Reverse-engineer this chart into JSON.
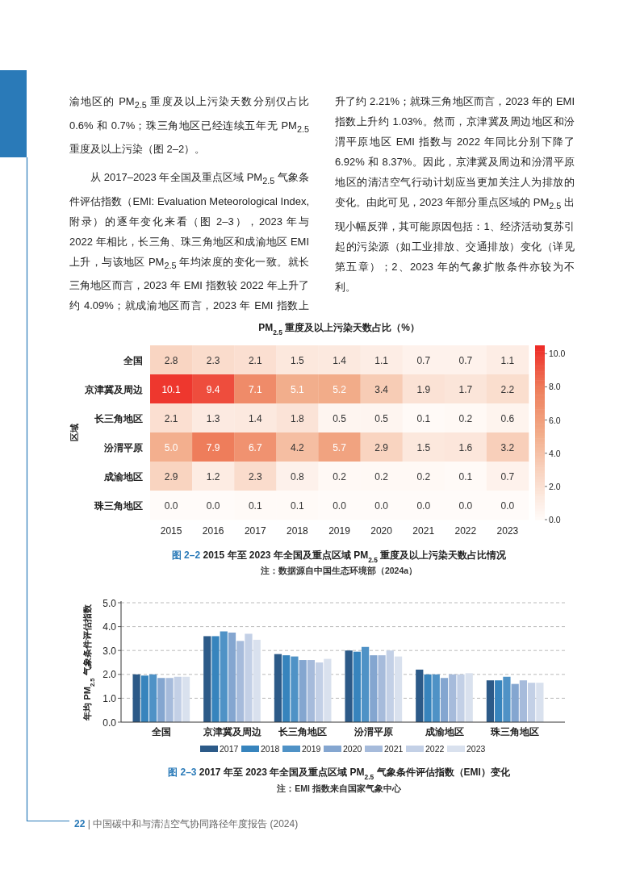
{
  "chart_data": [
    {
      "type": "other",
      "annotations": [
        "渝地区的 PM$_{2.5}$ 重度及以上污染天数分别仅占比 0.6% 和 0.7%；珠三角地区已经连续五年无 PM$_{2.5}$ 重度及以上污染（图 2–2）。",
        "从 2017–2023 年全国及重点区域 PM$_{2.5}$ 气象条件评估指数（EMI: Evaluation Meteorological Index, 附录）的逐年变化来看（图 2–3），2023 年与 2022 年相比，长三角、珠三角地区和成渝地区 EMI 上升，与该地区 PM$_{2.5}$ 年均浓度的变化一致。就长三角地区而言，2023 年 EMI 指数较 2022 年上升了约 4.09%；就成渝地区而言，2023 年 EMI 指数上升了约 2.21%；就珠三角地区而言，2023 年的 EMI 指数上升约 1.03%。然而，京津冀及周边地区和汾渭平原地区 EMI 指数与 2022 年同比分别下降了 6.92% 和 8.37%。因此，京津冀及周边和汾渭平原地区的清洁空气行动计划应当更加关注人为排放的变化。由此可见，2023 年部分重点区域的 PM$_{2.5}$ 出现小幅反弹，其可能原因包括：1、经济活动复苏引起的污染源（如工业排放、交通排放）变化（详见第五章）；2、2023 年的气象扩散条件亦较为不利。",
        "**22** | 中国碳中和与清洁空气协同路径年度报告 (2024)"
      ]
    },
    {
      "type": "heatmap",
      "title": "PM$_{2.5}$ 重度及以上污染天数占比（%）",
      "ylabel": "区域",
      "categories": [
        "2015",
        "2016",
        "2017",
        "2018",
        "2019",
        "2020",
        "2021",
        "2022",
        "2023"
      ],
      "y_categories": [
        "全国",
        "京津冀及周边",
        "长三角地区",
        "汾渭平原",
        "成渝地区",
        "珠三角地区"
      ],
      "cells": [
        [
          2.8,
          2.3,
          2.1,
          1.5,
          1.4,
          1.1,
          0.7,
          0.7,
          1.1
        ],
        [
          10.1,
          9.4,
          7.1,
          5.1,
          5.2,
          3.4,
          1.9,
          1.7,
          2.2
        ],
        [
          2.1,
          1.3,
          1.4,
          1.8,
          0.5,
          0.5,
          0.1,
          0.2,
          0.6
        ],
        [
          5.0,
          7.9,
          6.7,
          4.2,
          5.7,
          2.9,
          1.5,
          1.6,
          3.2
        ],
        [
          2.9,
          1.2,
          2.3,
          0.8,
          0.2,
          0.2,
          0.2,
          0.1,
          0.7
        ],
        [
          0.0,
          0.0,
          0.1,
          0.1,
          0.0,
          0.0,
          0.0,
          0.0,
          0.0
        ]
      ],
      "cell_labels": [
        [
          "2.8",
          "2.3",
          "2.1",
          "1.5",
          "1.4",
          "1.1",
          "0.7",
          "0.7",
          "1.1"
        ],
        [
          "10.1",
          "9.4",
          "7.1",
          "5.1",
          "5.2",
          "3.4",
          "1.9",
          "1.7",
          "2.2"
        ],
        [
          "2.1",
          "1.3",
          "1.4",
          "1.8",
          "0.5",
          "0.5",
          "0.1",
          "0.2",
          "0.6"
        ],
        [
          "5.0",
          "7.9",
          "6.7",
          "4.2",
          "5.7",
          "2.9",
          "1.5",
          "1.6",
          "3.2"
        ],
        [
          "2.9",
          "1.2",
          "2.3",
          "0.8",
          "0.2",
          "0.2",
          "0.2",
          "0.1",
          "0.7"
        ],
        [
          "0.0",
          "0.0",
          "0.1",
          "0.1",
          "0.0",
          "0.0",
          "0.0",
          "0.0",
          "0.0"
        ]
      ],
      "clim": [
        0,
        10.5
      ],
      "cticks": [
        {
          "value": 0,
          "label": "0.0"
        },
        {
          "value": 2,
          "label": "2.0"
        },
        {
          "value": 4,
          "label": "4.0"
        },
        {
          "value": 6,
          "label": "6.0"
        },
        {
          "value": 8,
          "label": "8.0"
        },
        {
          "value": 10,
          "label": "10.0"
        }
      ],
      "annotations": [
        "**图 2–2** 2015 年至 2023 年全国及重点区域 PM$_{2.5}$ 重度及以上污染天数占比情况",
        "注：数据源自中国生态环境部（2024a）"
      ]
    },
    {
      "type": "bar",
      "ylabel": "年均 PM$_{2.5}$ 气象条件评估指数",
      "categories": [
        "全国",
        "京津冀及周边",
        "长三角地区",
        "汾渭平原",
        "成渝地区",
        "珠三角地区"
      ],
      "series": [
        {
          "name": "2017",
          "color": "#2c5a88",
          "values": [
            2.0,
            3.6,
            2.85,
            3.0,
            2.2,
            1.75
          ]
        },
        {
          "name": "2018",
          "color": "#3784bd",
          "values": [
            1.95,
            3.6,
            2.8,
            2.95,
            2.0,
            1.75
          ]
        },
        {
          "name": "2019",
          "color": "#4f92c6",
          "values": [
            2.0,
            3.8,
            2.75,
            3.15,
            2.0,
            1.9
          ]
        },
        {
          "name": "2020",
          "color": "#84a6d0",
          "values": [
            1.85,
            3.75,
            2.6,
            2.8,
            1.85,
            1.6
          ]
        },
        {
          "name": "2021",
          "color": "#a6bbdb",
          "values": [
            1.85,
            3.4,
            2.6,
            2.8,
            2.0,
            1.75
          ]
        },
        {
          "name": "2022",
          "color": "#c3d0e6",
          "values": [
            1.9,
            3.7,
            2.5,
            3.0,
            2.0,
            1.65
          ]
        },
        {
          "name": "2023",
          "color": "#d9e1ee",
          "values": [
            1.9,
            3.45,
            2.65,
            2.75,
            2.05,
            1.65
          ]
        }
      ],
      "ylim": [
        0,
        5
      ],
      "yticks": [
        {
          "value": 0,
          "label": "0.0"
        },
        {
          "value": 1,
          "label": "1.0"
        },
        {
          "value": 2,
          "label": "2.0"
        },
        {
          "value": 3,
          "label": "3.0"
        },
        {
          "value": 4,
          "label": "4.0"
        },
        {
          "value": 5,
          "label": "5.0"
        }
      ],
      "grid": "y",
      "legend": "bottom",
      "annotations": [
        "**图 2–3** 2017 年至 2023 年全国及重点区域 PM$_{2.5}$ 气象条件评估指数（EMI）变化",
        "注：EMI 指数来自国家气象中心"
      ]
    }
  ]
}
